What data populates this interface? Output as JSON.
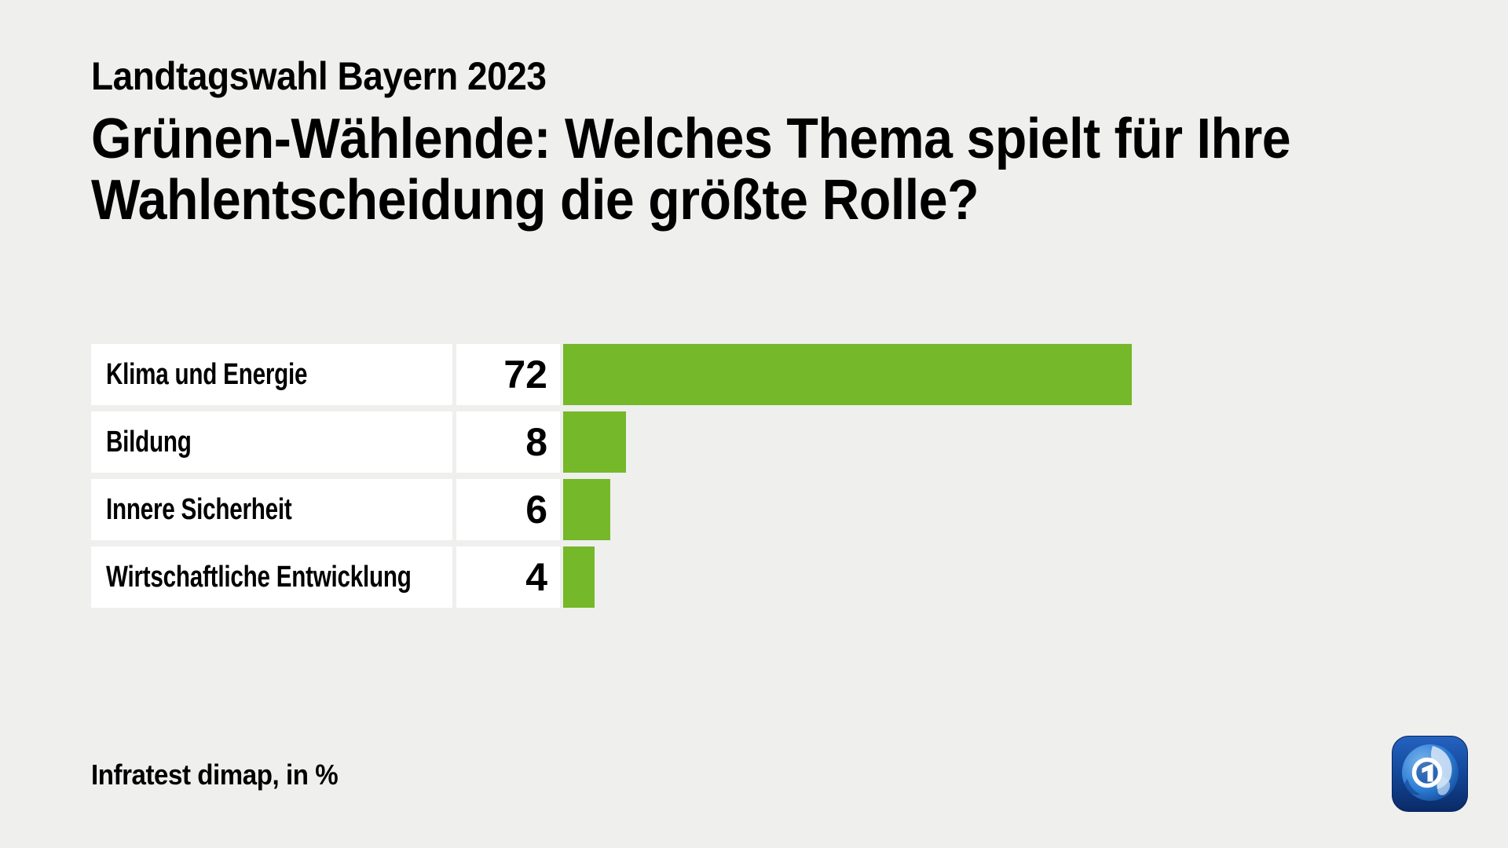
{
  "header": {
    "kicker": "Landtagswahl Bayern 2023",
    "title_line1": "Grünen-Wählende: Welches Thema spielt für Ihre",
    "title_line2": "Wahlentscheidung die größte Rolle?"
  },
  "footer": {
    "source": "Infratest dimap, in %"
  },
  "logo": {
    "label": "ARD tagesschau logo",
    "digit": "1"
  },
  "colors": {
    "background": "#efefee",
    "card": "#ffffff",
    "bar": "#75b829",
    "text": "#000000",
    "logo_blue_dark": "#0a2a66",
    "logo_blue_light": "#2563c0",
    "logo_globe_blue": "#2f7fd6"
  },
  "chart_data": {
    "type": "bar",
    "orientation": "horizontal",
    "title": "Grünen-Wählende: Welches Thema spielt für Ihre Wahlentscheidung die größte Rolle?",
    "subtitle": "Landtagswahl Bayern 2023",
    "unit": "%",
    "source": "Infratest dimap",
    "categories": [
      "Klima und Energie",
      "Bildung",
      "Innere Sicherheit",
      "Wirtschaftliche Entwicklung"
    ],
    "values": [
      72,
      8,
      6,
      4
    ],
    "xlim": [
      0,
      100
    ],
    "value_axis_hidden": true,
    "grid": false,
    "legend": false
  }
}
